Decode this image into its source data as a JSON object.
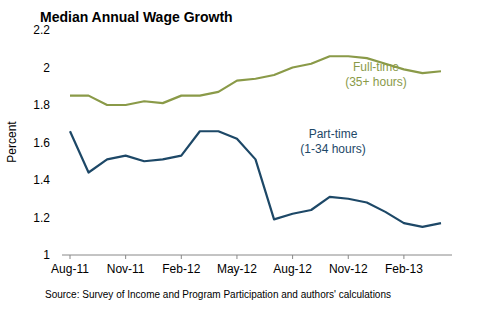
{
  "chart_data": {
    "type": "line",
    "title": "Median Annual Wage Growth",
    "y_label": "Percent",
    "source": "Source: Survey of Income and Program Participation and authors' calculations",
    "categories": [
      "Aug-11",
      null,
      null,
      "Nov-11",
      null,
      null,
      "Feb-12",
      null,
      null,
      "May-12",
      null,
      null,
      "Aug-12",
      null,
      null,
      "Nov-12",
      null,
      null,
      "Feb-13",
      null,
      null
    ],
    "series": [
      {
        "name": "Full-time",
        "color": "#8a9a48",
        "values": [
          1.85,
          1.85,
          1.8,
          1.8,
          1.82,
          1.81,
          1.85,
          1.85,
          1.87,
          1.93,
          1.94,
          1.96,
          2.0,
          2.02,
          2.06,
          2.06,
          2.05,
          2.02,
          1.99,
          1.97,
          1.98
        ]
      },
      {
        "name": "Part-time",
        "color": "#1d4867",
        "values": [
          1.66,
          1.44,
          1.51,
          1.53,
          1.5,
          1.51,
          1.53,
          1.66,
          1.66,
          1.62,
          1.51,
          1.19,
          1.22,
          1.24,
          1.31,
          1.3,
          1.28,
          1.23,
          1.17,
          1.15,
          1.17
        ]
      }
    ],
    "annotations": [
      "(35+ hours)",
      "(1-34 hours)"
    ],
    "ylim": [
      1,
      2.2
    ],
    "yticks": [
      1,
      {
        "value": 1.2,
        "label": "1.2"
      },
      {
        "value": 1.4,
        "label": "1.4"
      },
      {
        "value": 1.6,
        "label": "1.6"
      },
      {
        "value": 1.8,
        "label": "1.8"
      },
      2,
      {
        "value": 2.2,
        "label": "2.2"
      }
    ],
    "grid": false
  }
}
